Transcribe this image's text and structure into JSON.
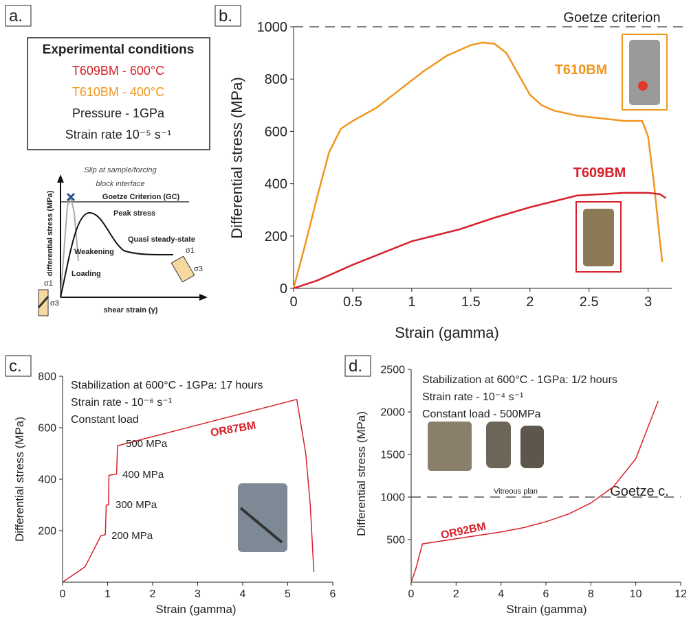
{
  "panel_labels": [
    "a.",
    "b.",
    "c.",
    "d."
  ],
  "conditions": {
    "title": "Experimental conditions",
    "lines": [
      "T609BM - 600°C",
      "T610BM - 400°C",
      "Pressure - 1GPa",
      "Strain rate 10⁻⁵ s⁻¹"
    ]
  },
  "schematic": {
    "slip": [
      "Slip at sample/forcing",
      "block interface"
    ],
    "gc": "Goetze Criterion (GC)",
    "peak": "Peak stress",
    "weakening": "Weakening",
    "steady": "Quasi steady-state",
    "loading": "Loading",
    "ylabel": "differential stress (MPa)",
    "xlabel": "shear strain (γ)",
    "s1": "σ1",
    "s3": "σ3"
  },
  "chart_data": [
    {
      "type": "line",
      "xlabel": "Strain (gamma)",
      "ylabel": "Differential stress (MPa)",
      "xlim": [
        0,
        3.2
      ],
      "ylim": [
        0,
        1000
      ],
      "xticks": [
        0,
        0.5,
        1,
        1.5,
        2,
        2.5,
        3
      ],
      "yticks": [
        0,
        200,
        400,
        600,
        800,
        1000
      ],
      "hlines": [
        {
          "value": 1000,
          "label": "Goetze criterion"
        }
      ],
      "series": [
        {
          "name": "T610BM",
          "color": "#f0961e",
          "x": [
            0,
            0.1,
            0.2,
            0.3,
            0.4,
            0.5,
            0.7,
            0.9,
            1.1,
            1.3,
            1.5,
            1.6,
            1.7,
            1.8,
            1.9,
            2.0,
            2.1,
            2.2,
            2.4,
            2.6,
            2.8,
            2.95,
            3.0,
            3.05,
            3.1,
            3.12
          ],
          "values": [
            0,
            170,
            350,
            520,
            610,
            640,
            690,
            760,
            830,
            890,
            930,
            940,
            935,
            900,
            820,
            740,
            700,
            680,
            660,
            650,
            640,
            640,
            580,
            400,
            180,
            100
          ]
        },
        {
          "name": "T609BM",
          "color": "#d7202a",
          "x": [
            0,
            0.2,
            0.5,
            1,
            1.4,
            1.7,
            2,
            2.4,
            2.8,
            3.0,
            3.1,
            3.15
          ],
          "values": [
            0,
            30,
            90,
            180,
            225,
            270,
            310,
            355,
            365,
            365,
            360,
            345
          ]
        }
      ],
      "annotations": []
    },
    {
      "type": "line",
      "xlabel": "Strain (gamma)",
      "ylabel": "Differential stress (MPa)",
      "xlim": [
        0,
        6
      ],
      "ylim": [
        0,
        800
      ],
      "xticks": [
        0,
        1,
        2,
        3,
        4,
        5,
        6
      ],
      "yticks": [
        200,
        400,
        600,
        800
      ],
      "hlines": [],
      "series": [
        {
          "name": "OR87BM",
          "color": "#d7202a",
          "x": [
            0,
            0.5,
            0.85,
            0.95,
            0.97,
            1.02,
            1.03,
            1.2,
            1.22,
            5.2,
            5.4,
            5.5,
            5.58
          ],
          "values": [
            0,
            60,
            180,
            185,
            300,
            300,
            415,
            420,
            530,
            710,
            500,
            300,
            40
          ]
        }
      ],
      "annotations": [
        "Stabilization at 600°C - 1GPa: 17 hours",
        "Strain rate - 10⁻⁶ s⁻¹",
        "Constant load",
        "500 MPa",
        "400 MPa",
        "300 MPa",
        "200 MPa"
      ]
    },
    {
      "type": "line",
      "xlabel": "Strain (gamma)",
      "ylabel": "Differential stress (MPa)",
      "xlim": [
        0,
        12
      ],
      "ylim": [
        0,
        2500
      ],
      "xticks": [
        0,
        2,
        4,
        6,
        8,
        10,
        12
      ],
      "yticks": [
        500,
        1000,
        1500,
        2000,
        2500
      ],
      "hlines": [
        {
          "value": 1000,
          "label": "Goetze c."
        }
      ],
      "series": [
        {
          "name": "OR92BM",
          "color": "#d7202a",
          "x": [
            0,
            0.2,
            0.5,
            1,
            2,
            3,
            4,
            5,
            6,
            7,
            8,
            9,
            10,
            11
          ],
          "values": [
            0,
            150,
            450,
            470,
            510,
            550,
            590,
            640,
            710,
            800,
            930,
            1120,
            1450,
            2130
          ]
        }
      ],
      "annotations": [
        "Stabilization at 600°C - 1GPa: 1/2 hours",
        "Strain rate - 10⁻⁴ s⁻¹",
        "Constant load - 500MPa",
        "Vitreous plan"
      ]
    }
  ]
}
